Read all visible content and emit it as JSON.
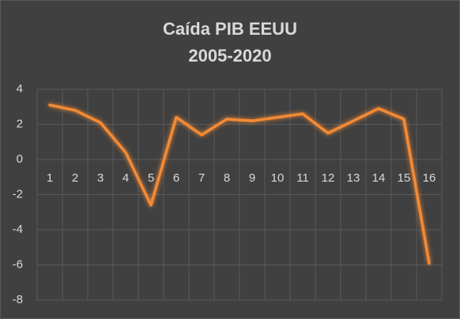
{
  "chart_data": {
    "type": "line",
    "title": "Caída PIB EEUU",
    "subtitle": "2005-2020",
    "categories": [
      "1",
      "2",
      "3",
      "4",
      "5",
      "6",
      "7",
      "8",
      "9",
      "10",
      "11",
      "12",
      "13",
      "14",
      "15",
      "16"
    ],
    "values": [
      3.1,
      2.8,
      2.1,
      0.4,
      -2.6,
      2.4,
      1.4,
      2.3,
      2.2,
      2.4,
      2.6,
      1.5,
      2.2,
      2.9,
      2.3,
      -5.9
    ],
    "color": "#f48a35",
    "ylim": [
      -8,
      4
    ],
    "yticks": [
      -8,
      -6,
      -4,
      -2,
      0,
      2,
      4
    ],
    "grid": true
  }
}
